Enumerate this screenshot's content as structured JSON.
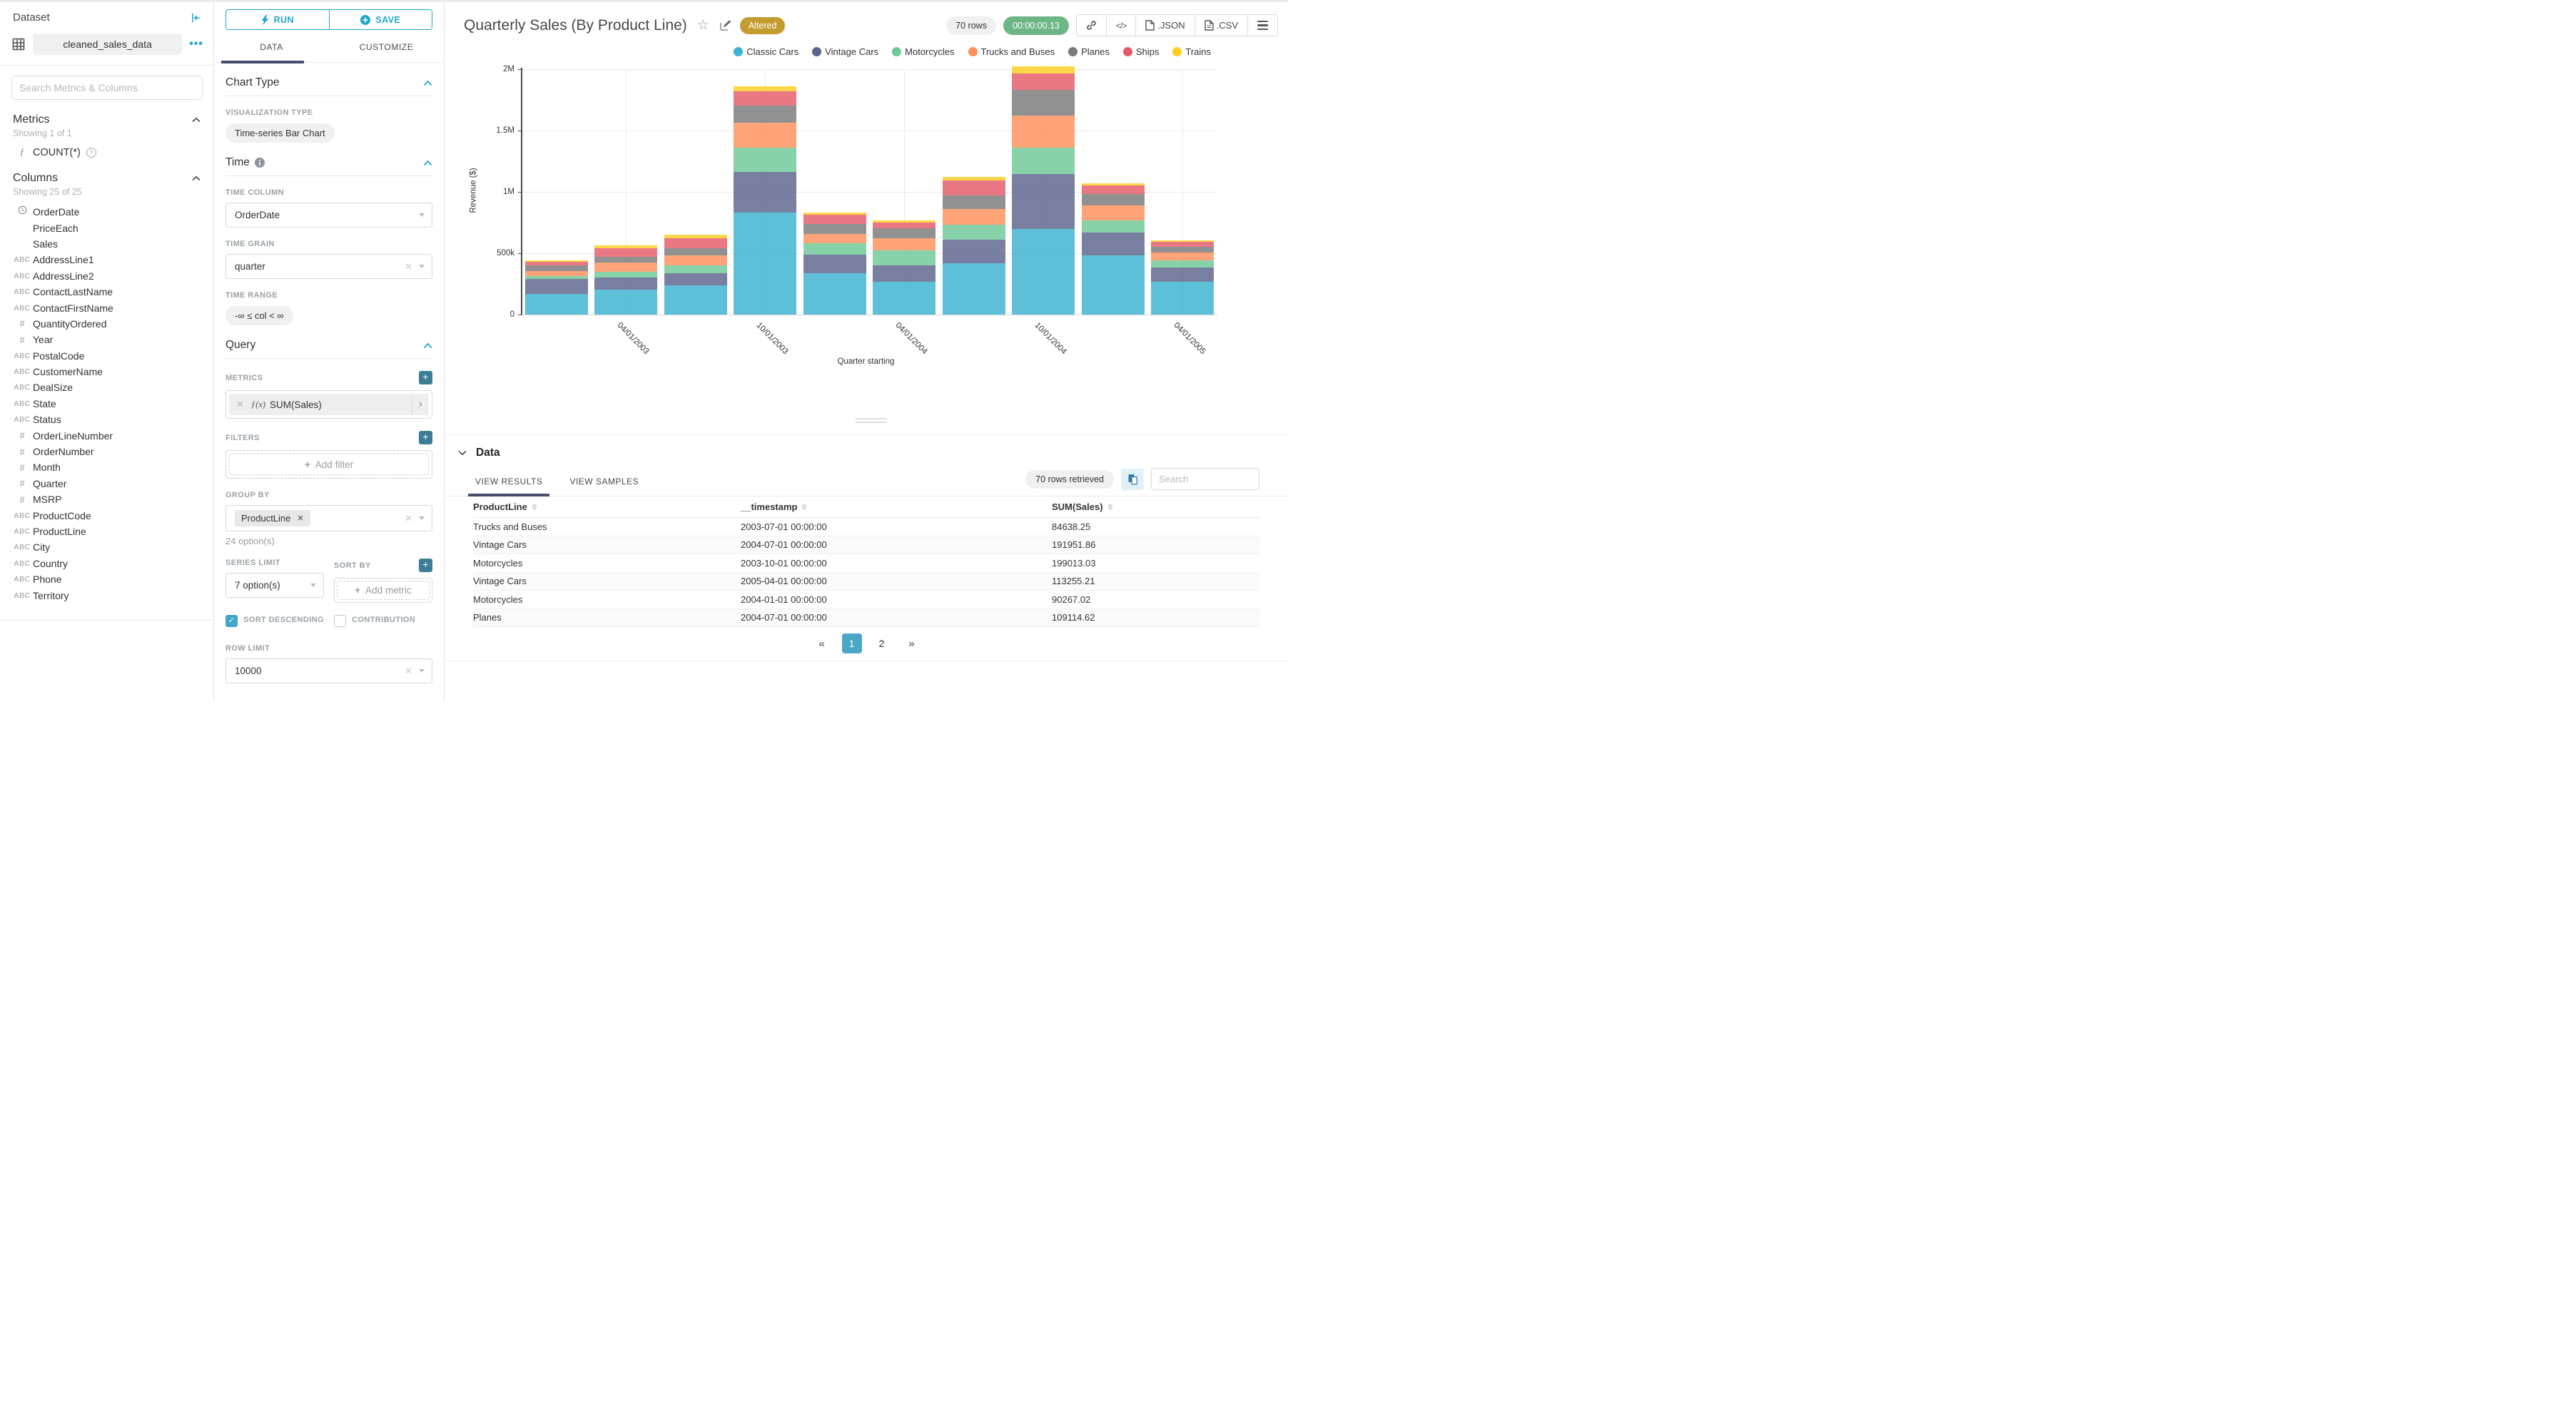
{
  "sidebar": {
    "title": "Dataset",
    "dataset_name": "cleaned_sales_data",
    "search_placeholder": "Search Metrics & Columns",
    "metrics": {
      "header": "Metrics",
      "showing": "Showing 1 of 1",
      "items": [
        {
          "icon": "function",
          "label": "COUNT(*)"
        }
      ]
    },
    "columns": {
      "header": "Columns",
      "showing": "Showing 25 of 25",
      "items": [
        {
          "type": "time",
          "label": "OrderDate"
        },
        {
          "type": "none",
          "label": "PriceEach"
        },
        {
          "type": "none",
          "label": "Sales"
        },
        {
          "type": "string",
          "label": "AddressLine1"
        },
        {
          "type": "string",
          "label": "AddressLine2"
        },
        {
          "type": "string",
          "label": "ContactLastName"
        },
        {
          "type": "string",
          "label": "ContactFirstName"
        },
        {
          "type": "number",
          "label": "QuantityOrdered"
        },
        {
          "type": "number",
          "label": "Year"
        },
        {
          "type": "string",
          "label": "PostalCode"
        },
        {
          "type": "string",
          "label": "CustomerName"
        },
        {
          "type": "string",
          "label": "DealSize"
        },
        {
          "type": "string",
          "label": "State"
        },
        {
          "type": "string",
          "label": "Status"
        },
        {
          "type": "number",
          "label": "OrderLineNumber"
        },
        {
          "type": "number",
          "label": "OrderNumber"
        },
        {
          "type": "number",
          "label": "Month"
        },
        {
          "type": "number",
          "label": "Quarter"
        },
        {
          "type": "number",
          "label": "MSRP"
        },
        {
          "type": "string",
          "label": "ProductCode"
        },
        {
          "type": "string",
          "label": "ProductLine"
        },
        {
          "type": "string",
          "label": "City"
        },
        {
          "type": "string",
          "label": "Country"
        },
        {
          "type": "string",
          "label": "Phone"
        },
        {
          "type": "string",
          "label": "Territory"
        }
      ]
    }
  },
  "controls": {
    "run_label": "RUN",
    "save_label": "SAVE",
    "tabs": {
      "data": "DATA",
      "customize": "CUSTOMIZE"
    },
    "chart_type": {
      "header": "Chart Type",
      "viz_type_label": "VISUALIZATION TYPE",
      "viz_type_value": "Time-series Bar Chart"
    },
    "time": {
      "header": "Time",
      "time_column_label": "TIME COLUMN",
      "time_column_value": "OrderDate",
      "time_grain_label": "TIME GRAIN",
      "time_grain_value": "quarter",
      "time_range_label": "TIME RANGE",
      "time_range_value": "-∞ ≤ col < ∞"
    },
    "query": {
      "header": "Query",
      "metrics_label": "METRICS",
      "metric_prefix": "ƒ(x)",
      "metric_value": "SUM(Sales)",
      "filters_label": "FILTERS",
      "add_filter_label": "Add filter",
      "group_by_label": "GROUP BY",
      "group_by_value": "ProductLine",
      "group_by_hint": "24 option(s)",
      "series_limit_label": "SERIES LIMIT",
      "series_limit_value": "7 option(s)",
      "sort_by_label": "SORT BY",
      "add_metric_label": "Add metric",
      "sort_descending_label": "SORT DESCENDING",
      "contribution_label": "CONTRIBUTION",
      "row_limit_label": "ROW LIMIT",
      "row_limit_value": "10000"
    }
  },
  "header": {
    "title": "Quarterly Sales (By Product Line)",
    "badge": "Altered",
    "rows_pill": "70 rows",
    "timer_pill": "00:00:00.13",
    "export_json_label": ".JSON",
    "export_csv_label": ".CSV"
  },
  "chart_data": {
    "type": "bar",
    "stacked": true,
    "xlabel": "Quarter starting",
    "ylabel": "Revenue ($)",
    "ylim": [
      0,
      2000000
    ],
    "grid": true,
    "legend_position": "top-right",
    "yticks": [
      {
        "v": 0,
        "label": "0"
      },
      {
        "v": 500000,
        "label": "500k"
      },
      {
        "v": 1000000,
        "label": "1M"
      },
      {
        "v": 1500000,
        "label": "1.5M"
      },
      {
        "v": 2000000,
        "label": "2M"
      }
    ],
    "x": [
      "2003-01-01",
      "2003-04-01",
      "2003-07-01",
      "2003-10-01",
      "2004-01-01",
      "2004-04-01",
      "2004-07-01",
      "2004-10-01",
      "2005-01-01",
      "2005-04-01"
    ],
    "x_tick_labels": [
      {
        "index": 1,
        "label": "04/01/2003"
      },
      {
        "index": 3,
        "label": "10/01/2003"
      },
      {
        "index": 5,
        "label": "04/01/2004"
      },
      {
        "index": 7,
        "label": "10/01/2004"
      },
      {
        "index": 9,
        "label": "04/01/2005"
      }
    ],
    "series": [
      {
        "name": "Classic Cars",
        "color": "#1FA8C9",
        "values": [
          170000,
          205000,
          240000,
          830000,
          340000,
          265000,
          420000,
          696000,
          480000,
          270000
        ]
      },
      {
        "name": "Vintage Cars",
        "color": "#454E7C",
        "values": [
          120000,
          100000,
          100000,
          330000,
          150000,
          135000,
          191952,
          447000,
          190000,
          113255
        ]
      },
      {
        "name": "Motorcycles",
        "color": "#5AC189",
        "values": [
          25000,
          42000,
          60000,
          199013,
          90267,
          125000,
          120000,
          215000,
          100000,
          60000
        ]
      },
      {
        "name": "Trucks and Buses",
        "color": "#FF7F44",
        "values": [
          40000,
          80000,
          84638,
          204000,
          76000,
          95000,
          130000,
          262000,
          120000,
          60000
        ]
      },
      {
        "name": "Planes",
        "color": "#666666",
        "values": [
          45000,
          45000,
          55000,
          143000,
          80000,
          85000,
          109115,
          212000,
          90000,
          50000
        ]
      },
      {
        "name": "Ships",
        "color": "#E04355",
        "values": [
          30000,
          70000,
          85000,
          112000,
          80000,
          45000,
          120000,
          134000,
          70000,
          40000
        ]
      },
      {
        "name": "Trains",
        "color": "#FCC700",
        "values": [
          10000,
          20000,
          25000,
          45000,
          17000,
          16000,
          29000,
          55000,
          20000,
          10000
        ]
      }
    ]
  },
  "data_panel": {
    "header": "Data",
    "tabs": {
      "results": "VIEW RESULTS",
      "samples": "VIEW SAMPLES"
    },
    "rows_retrieved": "70 rows retrieved",
    "search_placeholder": "Search",
    "table": {
      "columns": [
        "ProductLine",
        "__timestamp",
        "SUM(Sales)"
      ],
      "rows": [
        [
          "Trucks and Buses",
          "2003-07-01 00:00:00",
          "84638.25"
        ],
        [
          "Vintage Cars",
          "2004-07-01 00:00:00",
          "191951.86"
        ],
        [
          "Motorcycles",
          "2003-10-01 00:00:00",
          "199013.03"
        ],
        [
          "Vintage Cars",
          "2005-04-01 00:00:00",
          "113255.21"
        ],
        [
          "Motorcycles",
          "2004-01-01 00:00:00",
          "90267.02"
        ],
        [
          "Planes",
          "2004-07-01 00:00:00",
          "109114.62"
        ]
      ]
    },
    "pagination": {
      "prev": "«",
      "pages": [
        "1",
        "2"
      ],
      "active": "1",
      "next": "»"
    }
  },
  "colors": {
    "accent_teal": "#20a7c9",
    "tab_underline_indigo": "#484d6d",
    "badge_gold": "#c49b2f",
    "timer_green": "#6cb685",
    "pagination_active": "#49a6c5",
    "bar_opacity": 0.72
  }
}
